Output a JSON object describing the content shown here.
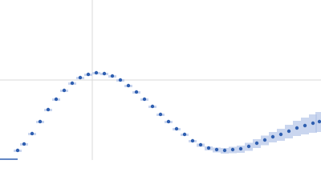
{
  "chart_data": {
    "type": "scatter",
    "x": [
      0.22,
      0.3,
      0.4,
      0.5,
      0.6,
      0.7,
      0.8,
      0.9,
      1.0,
      1.1,
      1.2,
      1.3,
      1.4,
      1.5,
      1.6,
      1.7,
      1.8,
      1.9,
      2.0,
      2.1,
      2.2,
      2.3,
      2.4,
      2.5,
      2.6,
      2.7,
      2.8,
      2.9,
      3.0,
      3.1,
      3.2,
      3.3,
      3.4,
      3.5,
      3.6,
      3.7,
      3.8,
      3.9,
      3.98
    ],
    "values": [
      0.12,
      0.2,
      0.33,
      0.48,
      0.63,
      0.76,
      0.87,
      0.96,
      1.03,
      1.07,
      1.09,
      1.08,
      1.05,
      1.0,
      0.93,
      0.85,
      0.76,
      0.67,
      0.57,
      0.48,
      0.39,
      0.32,
      0.24,
      0.19,
      0.15,
      0.13,
      0.12,
      0.13,
      0.14,
      0.17,
      0.21,
      0.25,
      0.29,
      0.32,
      0.36,
      0.4,
      0.43,
      0.46,
      0.48
    ],
    "errors": [
      0.01,
      0.01,
      0.01,
      0.01,
      0.01,
      0.01,
      0.01,
      0.01,
      0.01,
      0.01,
      0.01,
      0.01,
      0.01,
      0.01,
      0.01,
      0.01,
      0.01,
      0.01,
      0.01,
      0.01,
      0.01,
      0.01,
      0.01,
      0.015,
      0.02,
      0.025,
      0.03,
      0.035,
      0.04,
      0.045,
      0.05,
      0.055,
      0.06,
      0.07,
      0.08,
      0.09,
      0.1,
      0.11,
      0.12
    ],
    "color": "#2f5fb0",
    "error_color": "#b3c5e8",
    "xlim": [
      0,
      4
    ],
    "ylim": [
      0,
      2
    ],
    "xticks": [
      1.15
    ],
    "yticks": [
      1
    ],
    "grid": true
  }
}
